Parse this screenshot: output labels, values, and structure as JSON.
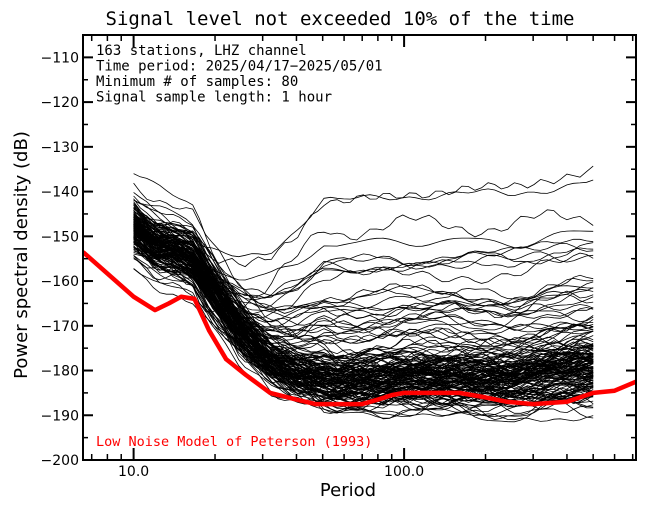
{
  "chart_data": {
    "type": "line",
    "title": "Signal level not exceeded 10% of the time",
    "xlabel": "Period",
    "ylabel": "Power spectral density (dB)",
    "x_scale": "log",
    "xlim": [
      6.5,
      720
    ],
    "ylim": [
      -200,
      -105
    ],
    "x_ticks": [
      {
        "value": 10,
        "label": "10.0"
      },
      {
        "value": 100,
        "label": "100.0"
      }
    ],
    "y_ticks": [
      {
        "value": -110,
        "label": "−110"
      },
      {
        "value": -120,
        "label": "−120"
      },
      {
        "value": -130,
        "label": "−130"
      },
      {
        "value": -140,
        "label": "−140"
      },
      {
        "value": -150,
        "label": "−150"
      },
      {
        "value": -160,
        "label": "−160"
      },
      {
        "value": -170,
        "label": "−170"
      },
      {
        "value": -180,
        "label": "−180"
      },
      {
        "value": -190,
        "label": "−190"
      },
      {
        "value": -200,
        "label": "−200"
      }
    ],
    "info_lines": [
      "163 stations, LHZ channel",
      "Time period: 2025/04/17−2025/05/01",
      "Minimum # of samples:  80",
      "Signal sample length: 1 hour"
    ],
    "station_curve_count": 163,
    "station_period_range": [
      10,
      500
    ],
    "station_curve_color": "#000000",
    "series": [
      {
        "name": "Low Noise Model of Peterson (1993)",
        "color": "#ff0000",
        "x": [
          6.5,
          10,
          12,
          13.5,
          15,
          16.8,
          19,
          22,
          26,
          32,
          40,
          47,
          60,
          70,
          80,
          90,
          100,
          130,
          160,
          200,
          240,
          300,
          400,
          500,
          600,
          720
        ],
        "y": [
          -153.5,
          -163.5,
          -166.5,
          -165,
          -163.5,
          -164,
          -171,
          -177.5,
          -181,
          -185,
          -186.5,
          -187.5,
          -187.5,
          -187.5,
          -186.5,
          -185.5,
          -185,
          -185,
          -185,
          -186,
          -187,
          -187.5,
          -187,
          -185,
          -184.5,
          -182.5
        ]
      }
    ],
    "legend": {
      "text": "Low Noise Model of Peterson (1993)",
      "placement": "bottom-left",
      "color": "#ff0000"
    }
  }
}
